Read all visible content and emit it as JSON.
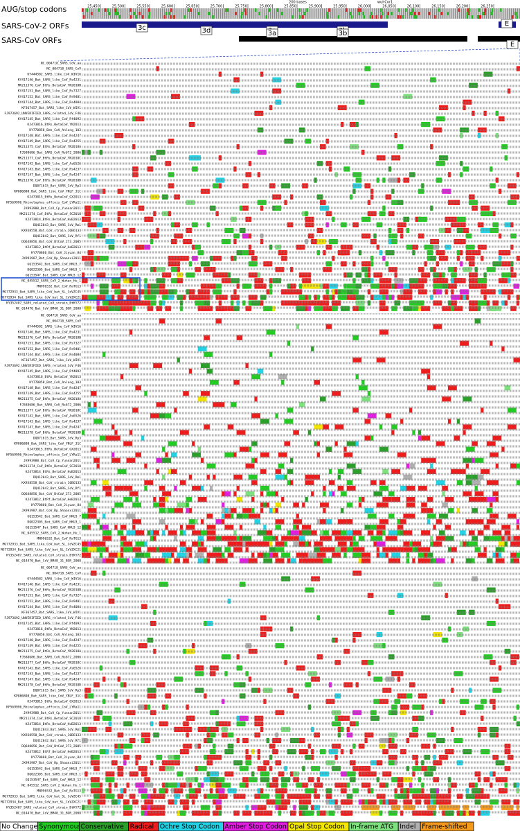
{
  "tracks": {
    "codons": "AUG/stop codons",
    "sars2": "SARS-CoV-2 ORFs",
    "sars1": "SARS-CoV ORFs"
  },
  "ruler": {
    "labels": [
      "25,450",
      "25,500",
      "25,550",
      "25,600",
      "25,650",
      "25,700",
      "25,750",
      "25,800",
      "25,850",
      "25,900",
      "25,950",
      "26,000",
      "26,050",
      "26,100",
      "26,150",
      "26,200",
      "26,250"
    ],
    "scale": "200 bases",
    "assembly": "wuhCor1"
  },
  "orfs_sars2": [
    "3c",
    "3d",
    "3a",
    "3b",
    "E"
  ],
  "orfs_sars1": [
    "3a",
    "3b",
    "E"
  ],
  "alignment": {
    "reference_aa": "NC_004718_SARS_CoV_aa",
    "sequences": [
      "NC_004718_SARS_CoV",
      "KY444582_SARS_like_CoV_WIV16",
      "KY417146_Bat_SARS_like_CoV_Rs4231",
      "MK211376_CoV_BtRs_BetaCoV_YN2018B",
      "KY417151_Bat_SARS_like_CoV_Rs7327",
      "KY417152_Bat_SARS_like_CoV_Rs9401",
      "KY417144_Bat_SARS_like_CoV_Rs4084",
      "KF367457_Bat_SARS_like_CoV_WIV1",
      "FJ973692_UNVERIFIED_SARS_related_CoV_F46",
      "KY417145_Bat_SARS_like_CoV_Rf4092",
      "KJ473816_BtRs_BetaCoV_YN2013",
      "KY770858_Bat_CoV_Anlong_103",
      "KY417148_Bat_SARS_like_CoV_Rs4247",
      "KY417149_Bat_SARS_like_CoV_Rs4255",
      "MK211375_CoV_BtRs_BetaCoV_YN2018A",
      "FJ588686_Bat_SARS_CoV_Rs672_2006",
      "MK211377_CoV_BtRs_BetaCoV_YN2018C",
      "KY417142_Bat_SARS_like_CoV_As6526",
      "KY417143_Bat_SARS_like_CoV_Rs4237",
      "KY417147_Bat_SARS_like_CoV_Rs4247",
      "MK211378_CoV_BtRs_BetaCoV_YN2018D",
      "DQ071615_Bat_SARS_CoV_Rp3",
      "KP886808_Bat_SARS_like_CoV_YNLF_31C",
      "KJ473815_BtRs_BetaCoV_GX2013",
      "KF569996_Rhinolophus_affinis_CoV_LYRa11",
      "JX993988_Bat_CoV_Cp_Yunnan2011",
      "MK211374_CoV_BtRs_BetaCoV_SC2018",
      "KJ473814_BtRs_BetaCoV_HuB2013",
      "DQ412043_Bat_SARS_CoV_Rm1",
      "KX938558_Bat_CoV_strain_16BO133",
      "DQ412042_Bat_SARS_CoV_Rf1",
      "DQ648856_Bat_CoV_BtCoV_273_2005",
      "KJ473812_BtRf_BetaCoV_HeB2013",
      "KY770860_Bat_CoV_Jiyuan_84",
      "JX993987_Bat_CoV_Rp_Shaanxi2011",
      "GQ153542_Bat_SARS_CoV_HKU3_7",
      "DQ022305_Bat_SARS_CoV_HKU3_1",
      "GQ153547_Bat_SARS_CoV_HKU3_12",
      "NC_045512_SARS_CoV_2_Wuhan_Hu_1",
      "MN996532_Bat_CoV_RaTG13",
      "MG772933_Bat_SARS_like_CoV_bat_SL_CoVZC45",
      "MG772934_Bat_SARS_like_CoV_bat_SL_CoVZXC21",
      "KY352407_SARS_related_CoV_strain_BtKY72",
      "NC_014470_Bat_CoV_BM48_31_BGR_2008"
    ]
  },
  "legend": [
    {
      "label": "No Change",
      "color": "#ffffff"
    },
    {
      "label": "Synonymous",
      "color": "#22cc22"
    },
    {
      "label": "Conservative",
      "color": "#2aa02a"
    },
    {
      "label": "Radical",
      "color": "#ee1c1c"
    },
    {
      "label": "Ochre Stop Codon",
      "color": "#22d3e6"
    },
    {
      "label": "Amber Stop Codon",
      "color": "#e01ee0"
    },
    {
      "label": "Opal Stop Codon",
      "color": "#f2e600"
    },
    {
      "label": "In-frame ATG",
      "color": "#7fe07f"
    },
    {
      "label": "Indel",
      "color": "#b0b0b0"
    },
    {
      "label": "Frame-shifted",
      "color": "#f39a1e"
    }
  ]
}
